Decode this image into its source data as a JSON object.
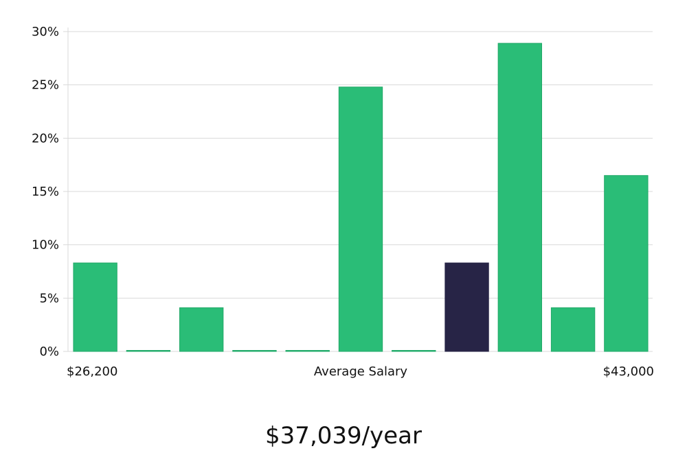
{
  "chart_data": {
    "type": "bar",
    "title": "",
    "xlabel": "Average Salary",
    "ylabel": "",
    "x_min_label": "$26,200",
    "x_max_label": "$43,000",
    "salary_label": "$37,039/year",
    "ylim": [
      0,
      30
    ],
    "y_ticks": [
      0,
      5,
      10,
      15,
      20,
      25,
      30
    ],
    "y_tick_labels": [
      "0%",
      "5%",
      "10%",
      "15%",
      "20%",
      "25%",
      "30%"
    ],
    "values": [
      8.3,
      0,
      4.1,
      0,
      0,
      24.8,
      0,
      8.3,
      28.9,
      4.1,
      16.5
    ],
    "highlight_index": 7,
    "grid": true,
    "legend": "none",
    "colors": {
      "bar": "#2abd77",
      "bar_border": "#22a868",
      "highlight": "#272446",
      "grid": "#d9d9d9"
    }
  }
}
